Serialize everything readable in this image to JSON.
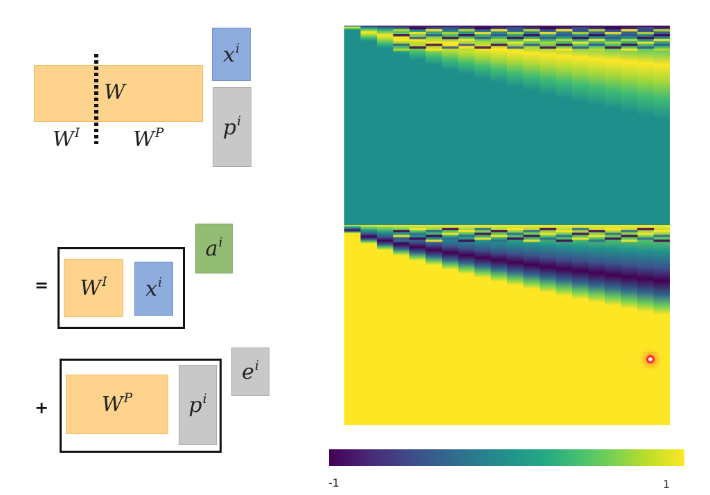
{
  "top": {
    "w_label": "W",
    "wi_base": "W",
    "wi_sup": "I",
    "wp_base": "W",
    "wp_sup": "P",
    "x_base": "x",
    "x_sup": "i",
    "p_base": "p",
    "p_sup": "i"
  },
  "bottom": {
    "equals": "=",
    "plus": "+",
    "wi_base": "W",
    "wi_sup": "I",
    "x_base": "x",
    "x_sup": "i",
    "a_base": "a",
    "a_sup": "i",
    "wp_base": "W",
    "wp_sup": "P",
    "p_base": "p",
    "p_sup": "i",
    "e_base": "e",
    "e_sup": "i"
  },
  "heatmap": {
    "colormap": "viridis",
    "value_range": [
      -1,
      1
    ],
    "top_half_background": "#1f8f8c",
    "bottom_half_background": "#fde725"
  },
  "colorbar": {
    "min_label": "-1",
    "max_label": "1"
  },
  "colors": {
    "orange": "#fdd38d",
    "blue": "#8facde",
    "gray": "#c8c8c8",
    "green": "#93bd75",
    "marker": "#ff2a2a"
  }
}
